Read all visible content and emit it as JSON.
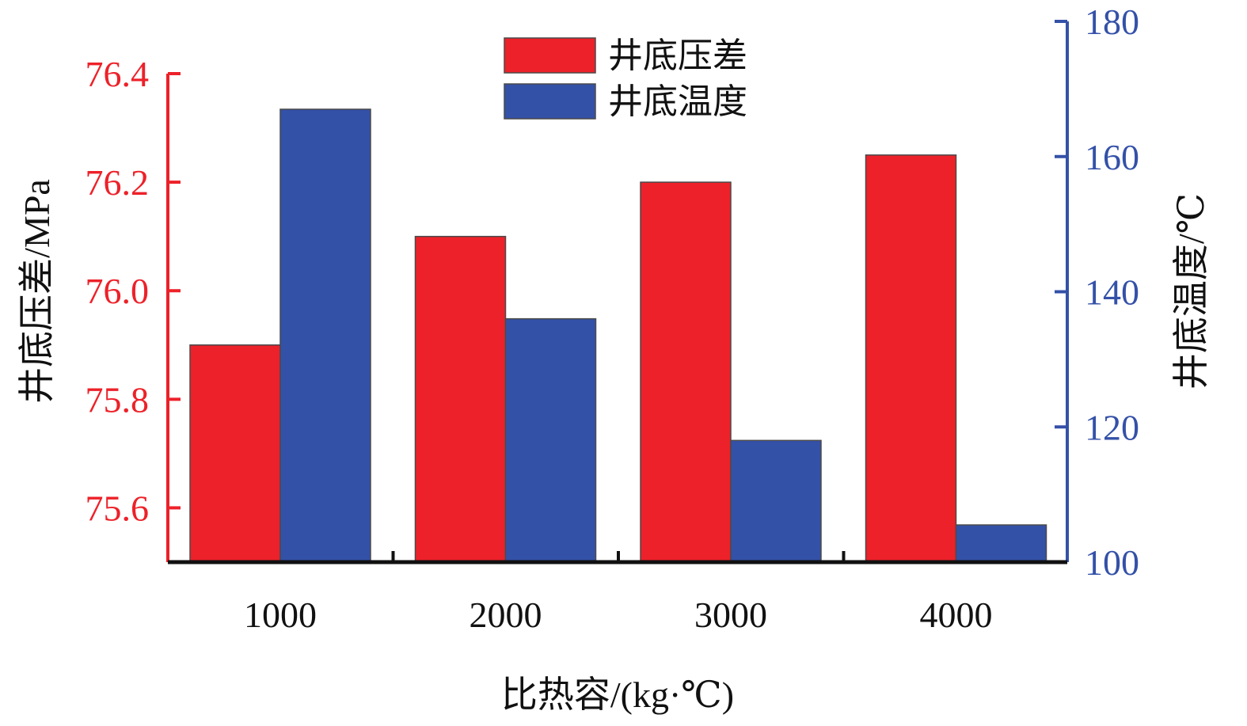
{
  "chart_data": {
    "type": "bar",
    "categories": [
      "1000",
      "2000",
      "3000",
      "4000"
    ],
    "series": [
      {
        "name": "井底压差",
        "axis": "left",
        "color": "#ed2129",
        "values": [
          75.9,
          76.1,
          76.2,
          76.25
        ]
      },
      {
        "name": "井底温度",
        "axis": "right",
        "color": "#3451a8",
        "values": [
          167,
          136,
          118,
          105.5
        ]
      }
    ],
    "xlabel": "比热容/(kg·℃)",
    "ylabel_left": "井底压差/MPa",
    "ylabel_right": "井底温度/℃",
    "ylim_left": [
      75.5,
      76.4
    ],
    "yticks_left": [
      "75.6",
      "75.8",
      "76.0",
      "76.2",
      "76.4"
    ],
    "ylim_right": [
      100,
      180
    ],
    "yticks_right": [
      "100",
      "120",
      "140",
      "160",
      "180"
    ],
    "left_axis_color": "#ed2129",
    "right_axis_color": "#3451a8",
    "legend": "top-center",
    "grid": false
  }
}
